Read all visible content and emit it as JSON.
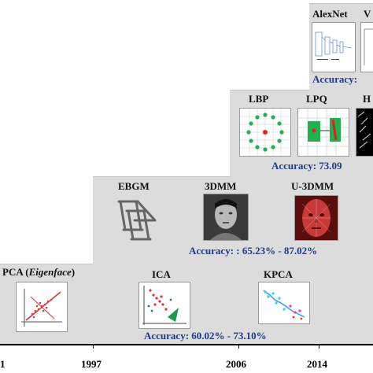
{
  "tiers": [
    {
      "accuracy": "Accuracy: 60.02% - 73.10%",
      "methods": [
        {
          "name_prefix": "PCA (",
          "name_italic": "Eigenface",
          "name_suffix": ")"
        },
        {
          "name": "ICA"
        },
        {
          "name": "KPCA"
        }
      ]
    },
    {
      "accuracy": "Accuracy: : 65.23% - 87.02%",
      "methods": [
        {
          "name": "EBGM"
        },
        {
          "name": "3DMM"
        },
        {
          "name": "U-3DMM"
        }
      ]
    },
    {
      "accuracy": "Accuracy:  73.09",
      "methods": [
        {
          "name": "LBP"
        },
        {
          "name": "LPQ"
        },
        {
          "name": "H"
        }
      ]
    },
    {
      "accuracy": "Accuracy: ",
      "methods": [
        {
          "name": "AlexNet"
        },
        {
          "name": "V"
        }
      ]
    }
  ],
  "timeline": [
    "1",
    "1997",
    "2006",
    "2014"
  ],
  "colors": {
    "step_bg": "#dcdcdc",
    "accuracy_text": "#1f3a8a",
    "axis": "#000000"
  }
}
